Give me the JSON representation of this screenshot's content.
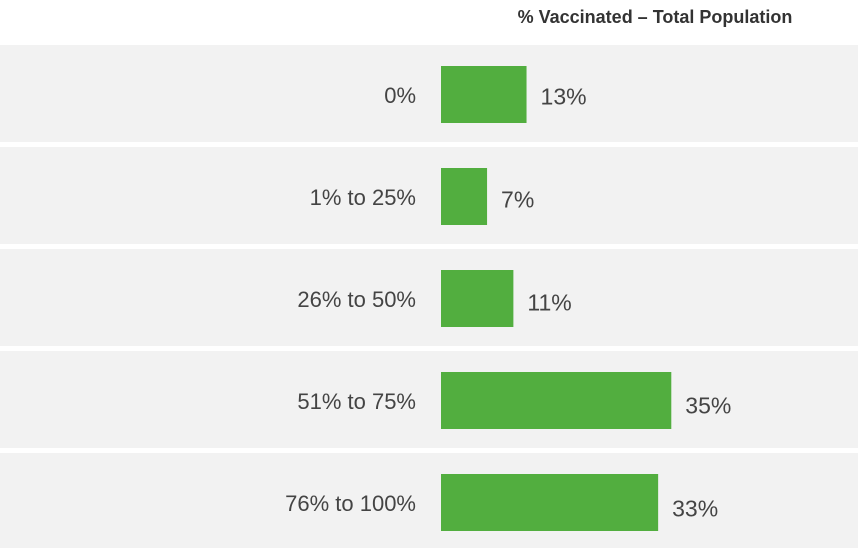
{
  "chart_data": {
    "type": "bar",
    "orientation": "horizontal",
    "title": "% Vaccinated – Total Population",
    "categories": [
      "0%",
      "1% to 25%",
      "26% to 50%",
      "51% to 75%",
      "76% to 100%"
    ],
    "values": [
      13,
      7,
      11,
      35,
      33
    ],
    "value_labels": [
      "13%",
      "7%",
      "11%",
      "35%",
      "33%"
    ],
    "color": "#52ae3f"
  }
}
